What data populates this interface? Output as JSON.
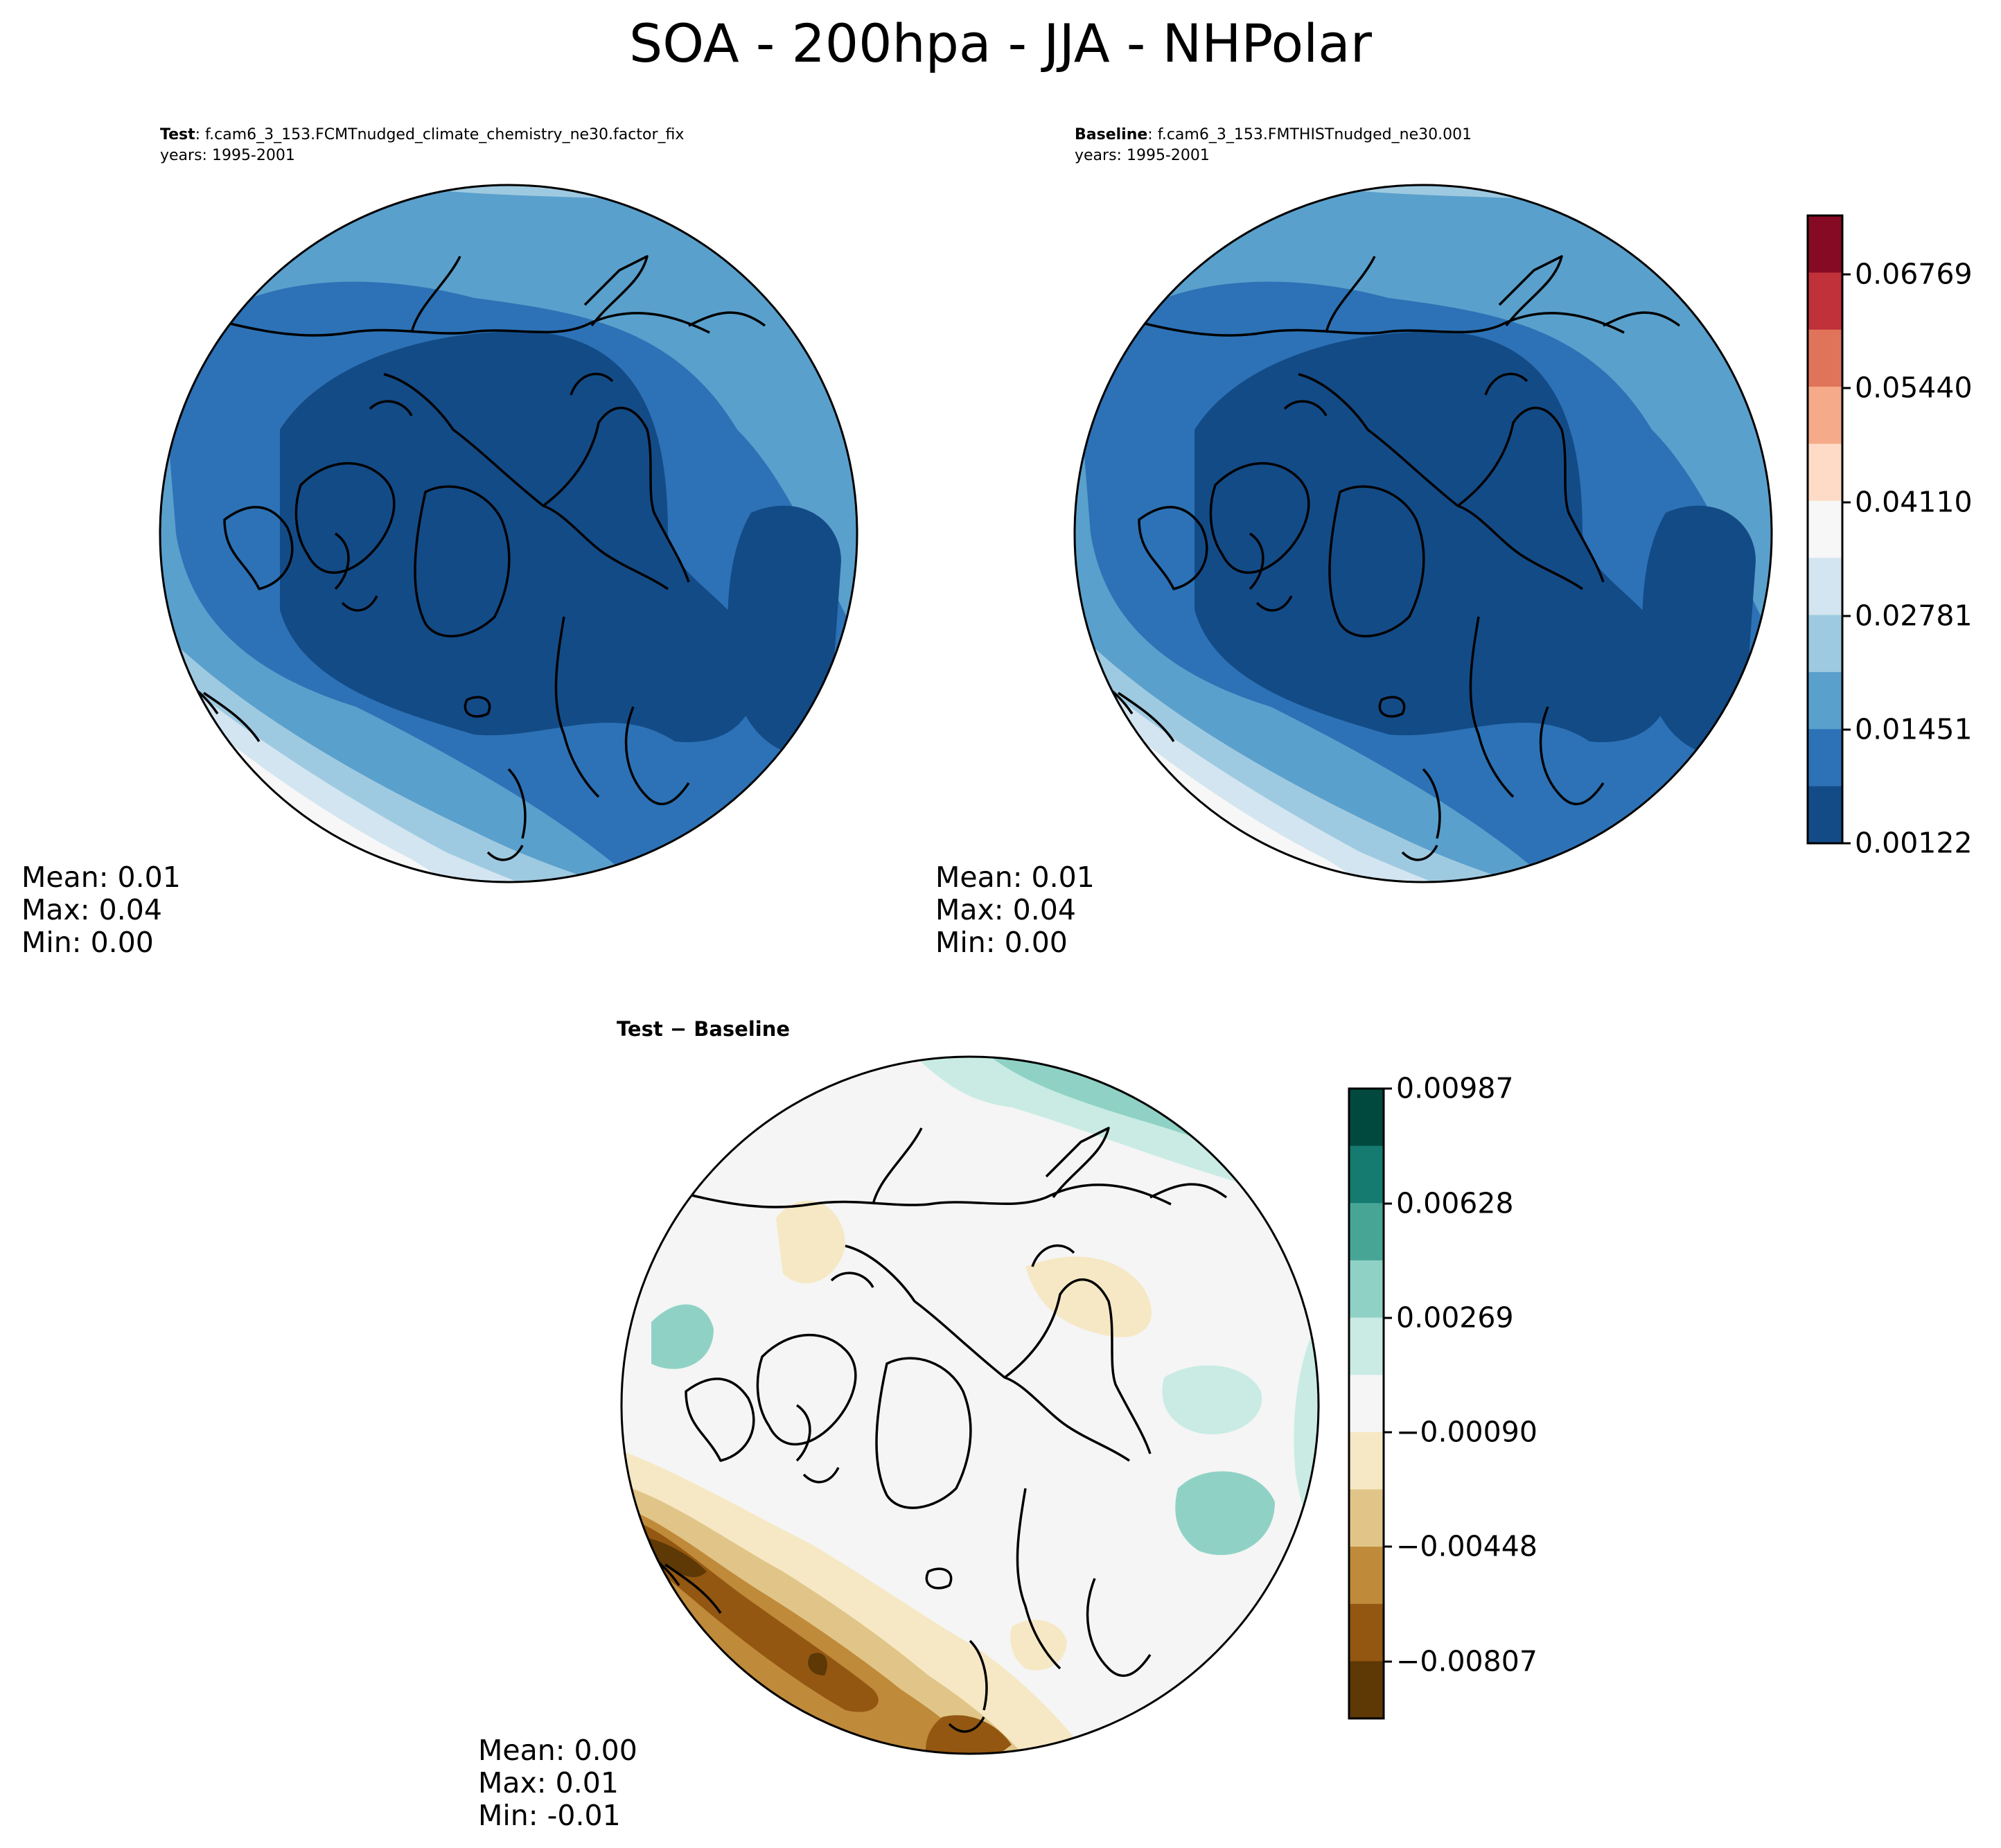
{
  "figure_title": "SOA - 200hpa - JJA - NHPolar",
  "panels": {
    "test": {
      "label": "Test",
      "case": ": f.cam6_3_153.FCMTnudged_climate_chemistry_ne30.factor_fix",
      "years": "years: 1995-2001",
      "stats": {
        "mean": "Mean:  0.01",
        "max": "Max:  0.04",
        "min": "Min:  0.00"
      }
    },
    "baseline": {
      "label": "Baseline",
      "case": ": f.cam6_3_153.FMTHISTnudged_ne30.001",
      "years": "years: 1995-2001",
      "stats": {
        "mean": "Mean:  0.01",
        "max": "Max:  0.04",
        "min": "Min:  0.00"
      }
    },
    "diff": {
      "title": "Test − Baseline",
      "stats": {
        "mean": "Mean:  0.00",
        "max": "Max:  0.01",
        "min": "Min: -0.01"
      }
    }
  },
  "colorbars": {
    "main": {
      "ticks": [
        "0.06769",
        "0.05440",
        "0.04110",
        "0.02781",
        "0.01451",
        "0.00122"
      ],
      "colors_top_to_bottom": [
        "#860a24",
        "#c0313a",
        "#e0745a",
        "#f5aa89",
        "#fddbc7",
        "#f7f7f7",
        "#d2e5f0",
        "#9ecae1",
        "#5aa0cc",
        "#2d72b6",
        "#134b87"
      ]
    },
    "diff": {
      "ticks": [
        "0.00987",
        "0.00628",
        "0.00269",
        "−0.00090",
        "−0.00448",
        "−0.00807"
      ],
      "colors_top_to_bottom": [
        "#01493f",
        "#157a70",
        "#47a596",
        "#8fd2c5",
        "#c9ebe4",
        "#f4f5f4",
        "#f6e8c4",
        "#e1c588",
        "#bf8a3a",
        "#935712",
        "#5e3905"
      ]
    }
  },
  "chart_data": [
    {
      "type": "heatmap",
      "title": "Test",
      "projection": "North Polar Stereographic",
      "value_range": [
        0.00122,
        0.06769
      ],
      "levels": [
        0.00122,
        0.00787,
        0.01451,
        0.02116,
        0.02781,
        0.03446,
        0.0411,
        0.04775,
        0.0544,
        0.06104,
        0.06769
      ],
      "mean": 0.01,
      "max": 0.04,
      "min": 0.0
    },
    {
      "type": "heatmap",
      "title": "Baseline",
      "projection": "North Polar Stereographic",
      "value_range": [
        0.00122,
        0.06769
      ],
      "levels": [
        0.00122,
        0.00787,
        0.01451,
        0.02116,
        0.02781,
        0.03446,
        0.0411,
        0.04775,
        0.0544,
        0.06104,
        0.06769
      ],
      "mean": 0.01,
      "max": 0.04,
      "min": 0.0
    },
    {
      "type": "heatmap",
      "title": "Test − Baseline",
      "projection": "North Polar Stereographic",
      "value_range": [
        -0.00987,
        0.00987
      ],
      "levels": [
        -0.00987,
        -0.00807,
        -0.00628,
        -0.00448,
        -0.00269,
        -0.0009,
        0.0009,
        0.00269,
        0.00448,
        0.00628,
        0.00807,
        0.00987
      ],
      "mean": 0.0,
      "max": 0.01,
      "min": -0.01
    }
  ]
}
